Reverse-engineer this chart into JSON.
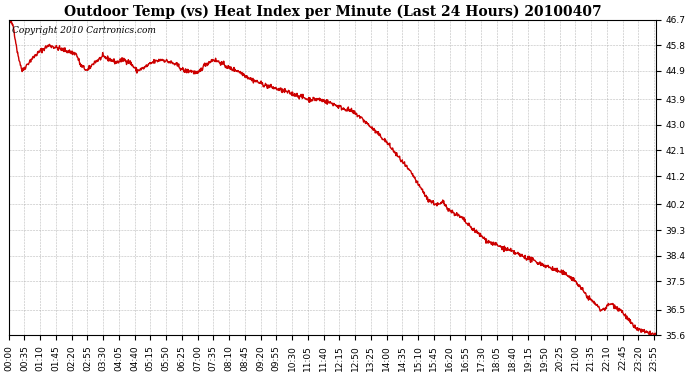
{
  "title": "Outdoor Temp (vs) Heat Index per Minute (Last 24 Hours) 20100407",
  "copyright_text": "Copyright 2010 Cartronics.com",
  "line_color": "#cc0000",
  "bg_color": "#ffffff",
  "plot_bg_color": "#ffffff",
  "grid_color": "#aaaaaa",
  "yticks": [
    35.6,
    36.5,
    37.5,
    38.4,
    39.3,
    40.2,
    41.2,
    42.1,
    43.0,
    43.9,
    44.9,
    45.8,
    46.7
  ],
  "xtick_labels": [
    "00:00",
    "00:35",
    "01:10",
    "01:45",
    "02:20",
    "02:55",
    "03:30",
    "04:05",
    "04:40",
    "05:15",
    "05:50",
    "06:25",
    "07:00",
    "07:35",
    "08:10",
    "08:45",
    "09:20",
    "09:55",
    "10:30",
    "11:05",
    "11:40",
    "12:15",
    "12:50",
    "13:25",
    "14:00",
    "14:35",
    "15:10",
    "15:45",
    "16:20",
    "16:55",
    "17:30",
    "18:05",
    "18:40",
    "19:15",
    "19:50",
    "20:25",
    "21:00",
    "21:35",
    "22:10",
    "22:45",
    "23:20",
    "23:55"
  ],
  "ymin": 35.6,
  "ymax": 46.7,
  "xmin": 0,
  "xmax": 1439,
  "line_width": 1.0,
  "title_fontsize": 10,
  "tick_fontsize": 6.5,
  "copyright_fontsize": 6.5
}
